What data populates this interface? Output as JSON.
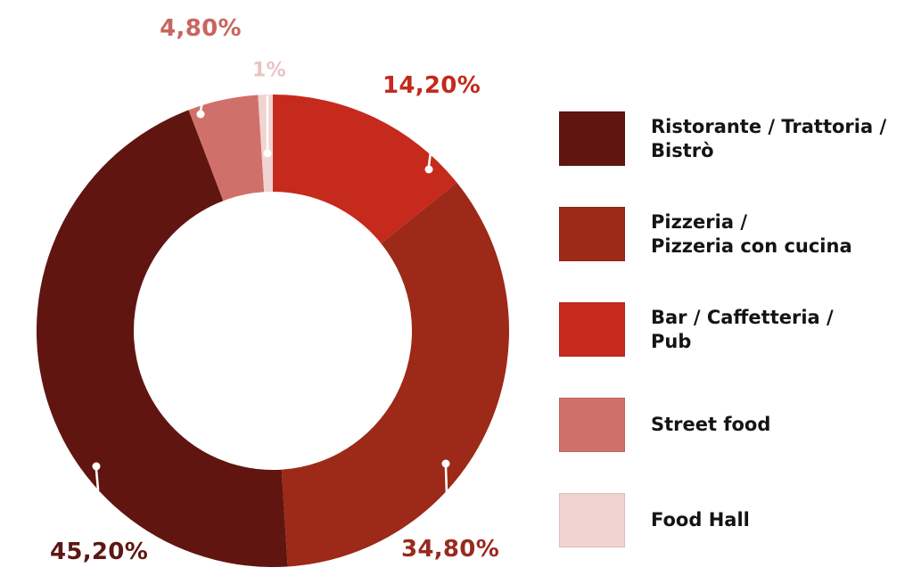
{
  "chart_data": {
    "type": "pie",
    "subtype": "donut",
    "title": "",
    "unit": "percent",
    "number_format": "comma-decimal",
    "legend_position": "right",
    "categories": [
      "Ristorante / Trattoria / Bistrò",
      "Pizzeria / Pizzeria con cucina",
      "Bar / Caffetteria / Pub",
      "Street food",
      "Food Hall"
    ],
    "values": [
      45.2,
      34.8,
      14.2,
      4.8,
      1.0
    ],
    "draw_order_clockwise_from_top": [
      "bar",
      "pizzeria",
      "ristorante",
      "street-food",
      "food-hall"
    ],
    "slices": [
      {
        "id": "ristorante",
        "label": "Ristorante / Trattoria / Bistrò",
        "legend_lines": [
          "Ristorante / Trattoria /",
          "Bistrò"
        ],
        "value": 45.2,
        "display": "45,20%",
        "color": "#611511",
        "label_color": "#5E1712"
      },
      {
        "id": "pizzeria",
        "label": "Pizzeria / Pizzeria con cucina",
        "legend_lines": [
          "Pizzeria /",
          "Pizzeria con cucina"
        ],
        "value": 34.8,
        "display": "34,80%",
        "color": "#9D2918",
        "label_color": "#992A1E"
      },
      {
        "id": "bar",
        "label": "Bar / Caffetteria / Pub",
        "legend_lines": [
          "Bar / Caffetteria /",
          "Pub"
        ],
        "value": 14.2,
        "display": "14,20%",
        "color": "#C62A1D",
        "label_color": "#C4291D"
      },
      {
        "id": "street-food",
        "label": "Street food",
        "legend_lines": [
          "Street food"
        ],
        "value": 4.8,
        "display": "4,80%",
        "color": "#CF716A",
        "label_color": "#C8665F"
      },
      {
        "id": "food-hall",
        "label": "Food Hall",
        "legend_lines": [
          "Food Hall"
        ],
        "value": 1.0,
        "display": "1%",
        "color": "#F1D3D2",
        "label_color": "#E9C4C2"
      }
    ],
    "colors": {
      "background": "#FFFFFF",
      "legend_text": "#141414",
      "callout_pin": "#FFFFFF"
    }
  }
}
